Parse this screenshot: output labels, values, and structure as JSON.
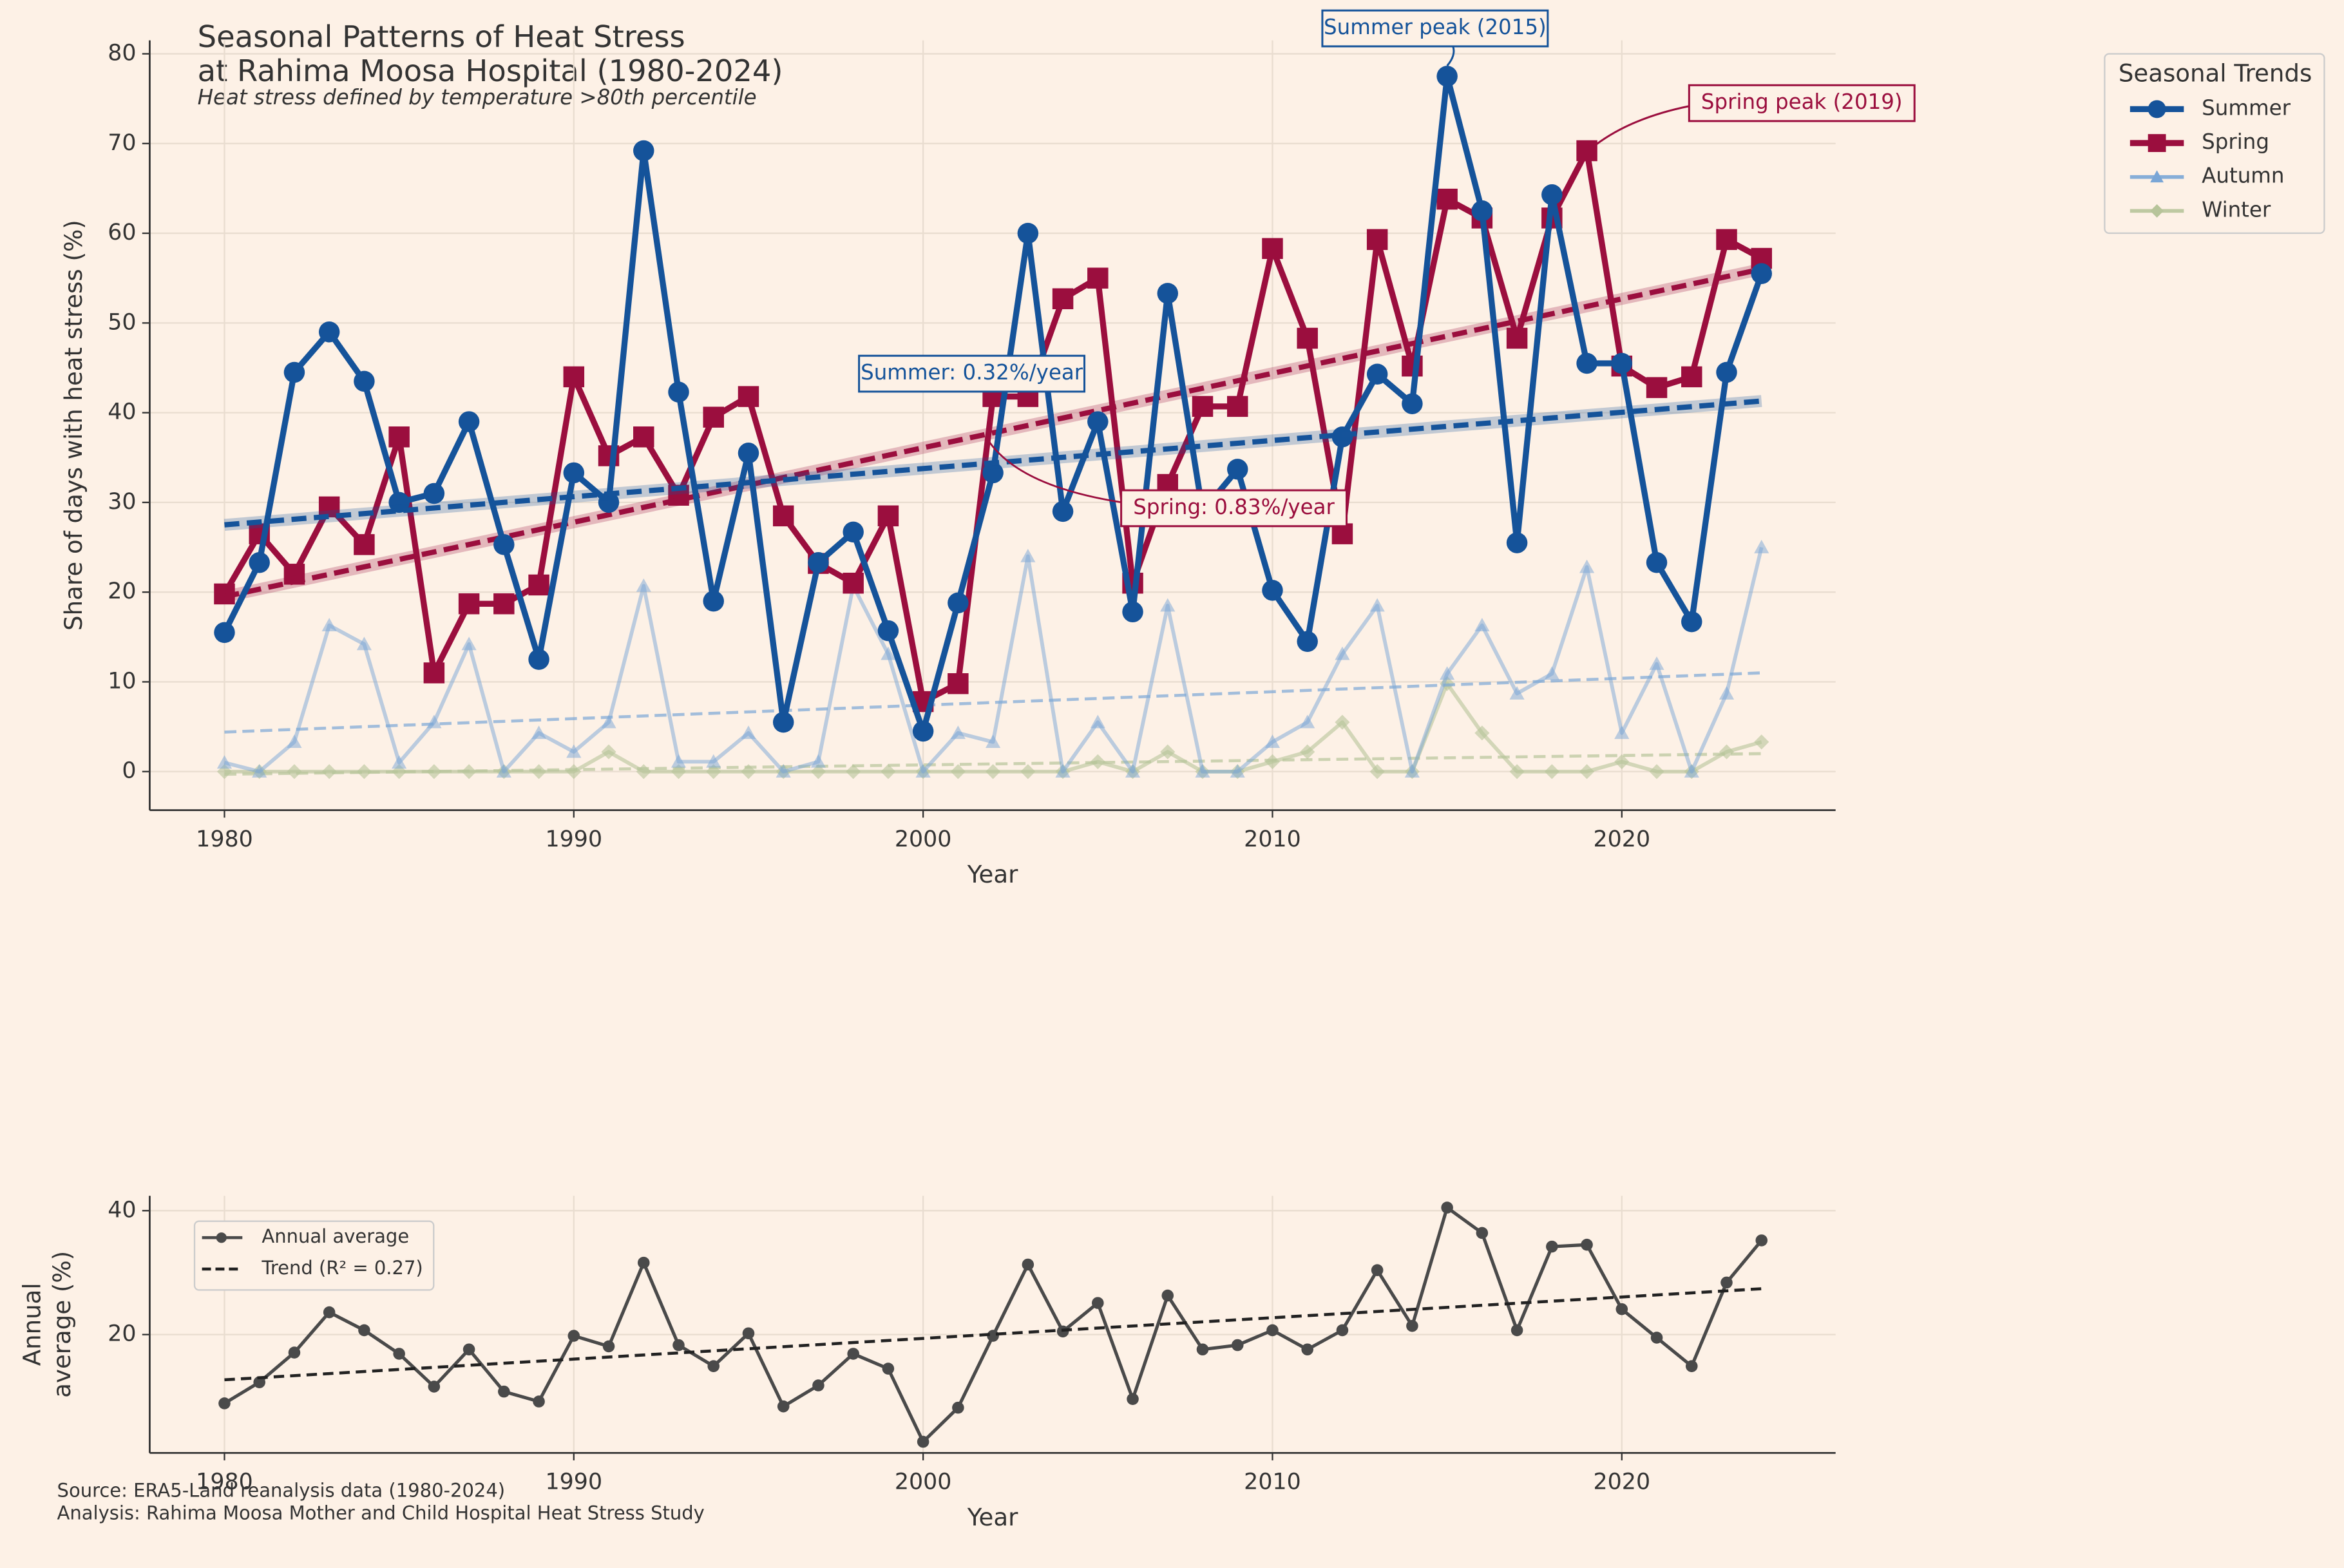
{
  "chart_data": [
    {
      "type": "line",
      "title": "Seasonal Patterns of Heat Stress",
      "title_line2": "at Rahima Moosa Hospital (1980-2024)",
      "subtitle": "Heat stress defined by temperature >80th percentile",
      "xlabel": "Year",
      "ylabel": "Share of days with heat stress (%)",
      "legend_title": "Seasonal Trends",
      "legend": "upper right",
      "grid": true,
      "x": [
        1980,
        1981,
        1982,
        1983,
        1984,
        1985,
        1986,
        1987,
        1988,
        1989,
        1990,
        1991,
        1992,
        1993,
        1994,
        1995,
        1996,
        1997,
        1998,
        1999,
        2000,
        2001,
        2002,
        2003,
        2004,
        2005,
        2006,
        2007,
        2008,
        2009,
        2010,
        2011,
        2012,
        2013,
        2014,
        2015,
        2016,
        2017,
        2018,
        2019,
        2020,
        2021,
        2022,
        2023,
        2024
      ],
      "xlim": [
        1977.86,
        2026.12
      ],
      "xticks": [
        1980,
        1990,
        2000,
        2010,
        2020
      ],
      "ylim": [
        -4.3,
        81.5
      ],
      "yticks": [
        0,
        10,
        20,
        30,
        40,
        50,
        60,
        70,
        80
      ],
      "series": [
        {
          "name": "Summer",
          "color": "#15539a",
          "marker": "circle",
          "values": [
            15.5,
            23.3,
            44.5,
            49,
            43.5,
            30,
            31,
            39,
            25.3,
            12.5,
            33.3,
            30,
            69.2,
            42.3,
            19,
            35.5,
            5.5,
            23.3,
            26.7,
            15.7,
            4.5,
            18.8,
            33.3,
            60,
            29,
            39,
            17.8,
            53.3,
            29,
            33.7,
            20.2,
            14.5,
            37.3,
            44.3,
            41,
            77.5,
            62.5,
            25.5,
            64.3,
            45.5,
            45.5,
            23.3,
            16.7,
            44.5,
            55.5
          ],
          "trend": [
            27.5,
            41.3
          ]
        },
        {
          "name": "Spring",
          "color": "#9b0e3e",
          "marker": "square",
          "values": [
            19.8,
            26.5,
            22,
            29.5,
            25.3,
            37.3,
            11,
            18.7,
            18.7,
            20.8,
            44,
            35.2,
            37.3,
            30.8,
            39.5,
            41.8,
            28.5,
            23.2,
            21,
            28.5,
            7.8,
            9.8,
            41.8,
            41.8,
            52.7,
            55,
            21,
            32,
            40.7,
            40.7,
            58.3,
            48.3,
            26.5,
            59.3,
            45.2,
            63.8,
            61.7,
            48.3,
            61.7,
            69.2,
            45.2,
            42.8,
            44,
            59.3,
            57.2
          ],
          "trend": [
            19.5,
            56
          ]
        },
        {
          "name": "Autumn",
          "color": "#7aa6d6",
          "marker": "triangle",
          "values": [
            1,
            0,
            3.3,
            16.3,
            14.2,
            1,
            5.5,
            14.2,
            0,
            4.3,
            2.2,
            5.5,
            20.7,
            1.1,
            1.1,
            4.3,
            0,
            1.1,
            20.7,
            13.1,
            0,
            4.3,
            3.3,
            24,
            0,
            5.5,
            0,
            18.5,
            0,
            0,
            3.3,
            5.5,
            13.1,
            18.5,
            0,
            10.9,
            16.3,
            8.7,
            10.9,
            22.8,
            4.3,
            12,
            0,
            8.7,
            25
          ],
          "trend": [
            4.4,
            11
          ]
        },
        {
          "name": "Winter",
          "color": "#b7c49a",
          "marker": "diamond",
          "values": [
            0,
            0,
            0,
            0,
            0,
            0,
            0,
            0,
            0,
            0,
            0,
            2.2,
            0,
            0,
            0,
            0,
            0,
            0,
            0,
            0,
            0,
            0,
            0,
            0,
            0,
            1.1,
            0,
            2.2,
            0,
            0,
            1.1,
            2.2,
            5.5,
            0,
            0,
            9.8,
            4.3,
            0,
            0,
            0,
            1.1,
            0,
            0,
            2.2,
            3.3
          ],
          "trend": [
            -0.3,
            2.0
          ]
        }
      ],
      "annotations": [
        {
          "text": "Summer peak (2015)",
          "color": "#15539a"
        },
        {
          "text": "Spring peak (2019)",
          "color": "#9b0e3e"
        },
        {
          "text": "Summer: 0.32%/year",
          "color": "#15539a"
        },
        {
          "text": "Spring: 0.83%/year",
          "color": "#9b0e3e"
        }
      ]
    },
    {
      "type": "line",
      "xlabel": "Year",
      "ylabel": "Annual average (%)",
      "grid": true,
      "legend": "upper left",
      "x": [
        1980,
        1981,
        1982,
        1983,
        1984,
        1985,
        1986,
        1987,
        1988,
        1989,
        1990,
        1991,
        1992,
        1993,
        1994,
        1995,
        1996,
        1997,
        1998,
        1999,
        2000,
        2001,
        2002,
        2003,
        2004,
        2005,
        2006,
        2007,
        2008,
        2009,
        2010,
        2011,
        2012,
        2013,
        2014,
        2015,
        2016,
        2017,
        2018,
        2019,
        2020,
        2021,
        2022,
        2023,
        2024
      ],
      "xlim": [
        1977.86,
        2026.12
      ],
      "xticks": [
        1980,
        1990,
        2000,
        2010,
        2020
      ],
      "ylim": [
        0.9,
        42.4
      ],
      "yticks": [
        20,
        40
      ],
      "series": [
        {
          "name": "Annual average",
          "color": "#4a4a4a",
          "values": [
            8.9,
            12.3,
            17.1,
            23.6,
            20.7,
            16.9,
            11.6,
            17.6,
            10.8,
            9.2,
            19.8,
            18.1,
            31.6,
            18.3,
            14.9,
            20.2,
            8.4,
            11.8,
            16.9,
            14.5,
            2.7,
            8.2,
            19.8,
            31.3,
            20.5,
            25.1,
            9.6,
            26.3,
            17.6,
            18.3,
            20.7,
            17.6,
            20.7,
            30.4,
            21.4,
            40.5,
            36.4,
            20.7,
            34.2,
            34.5,
            24.1,
            19.5,
            14.9,
            28.4,
            35.2
          ]
        },
        {
          "name": "Trend (R² = 0.27)",
          "color": "#222222",
          "trend": [
            12.7,
            27.4
          ]
        }
      ]
    }
  ],
  "footer": {
    "source": "Source: ERA5-Land reanalysis data (1980-2024)",
    "analysis": "Analysis: Rahima Moosa Mother and Child Hospital Heat Stress Study"
  }
}
